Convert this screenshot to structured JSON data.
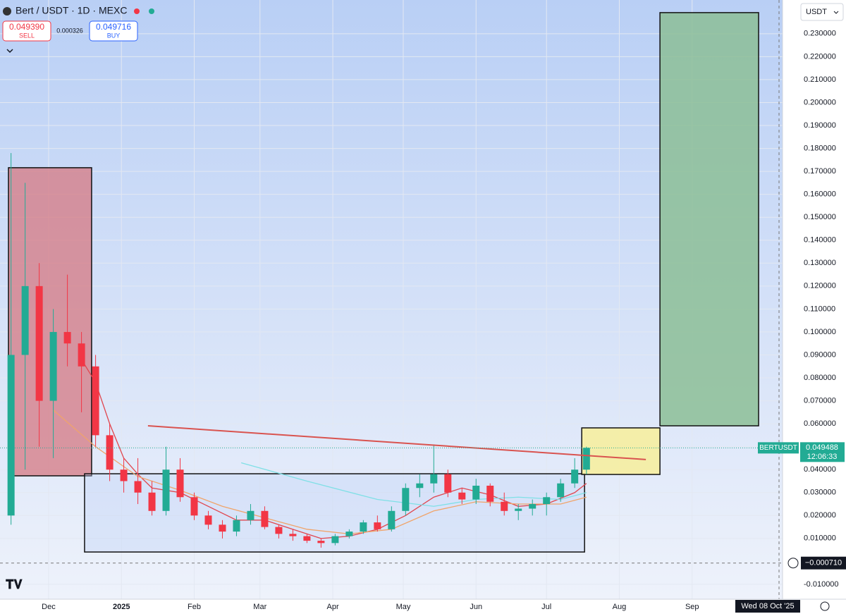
{
  "header": {
    "symbol": "Bert / USDT · 1D · MEXC",
    "sell_price": "0.049390",
    "sell_label": "SELL",
    "spread": "0.000326",
    "buy_price": "0.049716",
    "buy_label": "BUY",
    "currency": "USDT"
  },
  "chart_data": {
    "type": "candlestick",
    "xlim": [
      -20.7,
      312.5
    ],
    "ylim": [
      -0.0134,
      0.2447
    ],
    "grid": true,
    "up_color": "#22ab94",
    "down_color": "#f23645",
    "xticks": [
      {
        "value": 0,
        "label": "Dec"
      },
      {
        "value": 31,
        "label": "2025"
      },
      {
        "value": 62,
        "label": "Feb"
      },
      {
        "value": 90,
        "label": "Mar"
      },
      {
        "value": 121,
        "label": "Apr"
      },
      {
        "value": 151,
        "label": "May"
      },
      {
        "value": 182,
        "label": "Jun"
      },
      {
        "value": 212,
        "label": "Jul"
      },
      {
        "value": 243,
        "label": "Aug"
      },
      {
        "value": 274,
        "label": "Sep"
      }
    ],
    "yticks": [
      {
        "value": -0.01,
        "label": "-0.010000"
      },
      {
        "value": 0.01,
        "label": "0.010000"
      },
      {
        "value": 0.02,
        "label": "0.020000"
      },
      {
        "value": 0.03,
        "label": "0.030000"
      },
      {
        "value": 0.04,
        "label": "0.040000"
      },
      {
        "value": 0.05,
        "label": "0.050000"
      },
      {
        "value": 0.06,
        "label": "0.060000"
      },
      {
        "value": 0.07,
        "label": "0.070000"
      },
      {
        "value": 0.08,
        "label": "0.080000"
      },
      {
        "value": 0.09,
        "label": "0.090000"
      },
      {
        "value": 0.1,
        "label": "0.100000"
      },
      {
        "value": 0.11,
        "label": "0.110000"
      },
      {
        "value": 0.12,
        "label": "0.120000"
      },
      {
        "value": 0.13,
        "label": "0.130000"
      },
      {
        "value": 0.14,
        "label": "0.140000"
      },
      {
        "value": 0.15,
        "label": "0.150000"
      },
      {
        "value": 0.16,
        "label": "0.160000"
      },
      {
        "value": 0.17,
        "label": "0.170000"
      },
      {
        "value": 0.18,
        "label": "0.180000"
      },
      {
        "value": 0.19,
        "label": "0.190000"
      },
      {
        "value": 0.2,
        "label": "0.200000"
      },
      {
        "value": 0.21,
        "label": "0.210000"
      },
      {
        "value": 0.22,
        "label": "0.220000"
      },
      {
        "value": 0.23,
        "label": "0.230000"
      }
    ],
    "candles": {
      "x": [
        -16,
        -10,
        -4,
        2,
        8,
        14,
        20,
        26,
        32,
        38,
        44,
        50,
        56,
        62,
        68,
        74,
        80,
        86,
        92,
        98,
        104,
        110,
        116,
        122,
        128,
        134,
        140,
        146,
        152,
        158,
        164,
        170,
        176,
        182,
        188,
        194,
        200,
        206,
        212,
        218,
        224,
        229
      ],
      "open": [
        0.02,
        0.09,
        0.12,
        0.07,
        0.1,
        0.095,
        0.085,
        0.055,
        0.04,
        0.035,
        0.03,
        0.022,
        0.04,
        0.028,
        0.02,
        0.016,
        0.013,
        0.018,
        0.022,
        0.015,
        0.012,
        0.011,
        0.009,
        0.008,
        0.011,
        0.013,
        0.017,
        0.014,
        0.022,
        0.032,
        0.034,
        0.038,
        0.03,
        0.027,
        0.033,
        0.026,
        0.022,
        0.023,
        0.025,
        0.028,
        0.034,
        0.04
      ],
      "high": [
        0.178,
        0.165,
        0.13,
        0.11,
        0.125,
        0.1,
        0.09,
        0.06,
        0.045,
        0.045,
        0.035,
        0.05,
        0.045,
        0.03,
        0.022,
        0.018,
        0.02,
        0.025,
        0.024,
        0.016,
        0.014,
        0.012,
        0.01,
        0.012,
        0.014,
        0.018,
        0.02,
        0.024,
        0.034,
        0.038,
        0.051,
        0.04,
        0.032,
        0.036,
        0.034,
        0.03,
        0.025,
        0.027,
        0.03,
        0.036,
        0.045,
        0.05
      ],
      "low": [
        0.016,
        0.04,
        0.05,
        0.045,
        0.085,
        0.065,
        0.05,
        0.035,
        0.03,
        0.025,
        0.02,
        0.02,
        0.026,
        0.018,
        0.014,
        0.01,
        0.011,
        0.016,
        0.014,
        0.01,
        0.009,
        0.008,
        0.006,
        0.007,
        0.01,
        0.012,
        0.013,
        0.013,
        0.02,
        0.028,
        0.03,
        0.028,
        0.025,
        0.025,
        0.024,
        0.02,
        0.018,
        0.02,
        0.02,
        0.026,
        0.032,
        0.038
      ],
      "close": [
        0.09,
        0.12,
        0.07,
        0.1,
        0.095,
        0.085,
        0.055,
        0.04,
        0.035,
        0.03,
        0.022,
        0.04,
        0.028,
        0.02,
        0.016,
        0.013,
        0.018,
        0.022,
        0.015,
        0.012,
        0.011,
        0.009,
        0.008,
        0.011,
        0.013,
        0.017,
        0.014,
        0.022,
        0.032,
        0.034,
        0.038,
        0.03,
        0.027,
        0.033,
        0.026,
        0.022,
        0.023,
        0.025,
        0.028,
        0.034,
        0.04,
        0.0495
      ]
    },
    "lines": [
      {
        "color": "#e0464e",
        "x": [
          14,
          20,
          26,
          32,
          38,
          44,
          56,
          68,
          80,
          92,
          104,
          116,
          128,
          140,
          152,
          164,
          176,
          188,
          200,
          212,
          224,
          229
        ],
        "values": [
          0.088,
          0.078,
          0.06,
          0.045,
          0.038,
          0.032,
          0.03,
          0.024,
          0.018,
          0.018,
          0.014,
          0.01,
          0.011,
          0.014,
          0.02,
          0.028,
          0.032,
          0.029,
          0.024,
          0.025,
          0.03,
          0.034
        ]
      },
      {
        "color": "#f0a46a",
        "x": [
          2,
          20,
          38,
          56,
          74,
          92,
          110,
          128,
          146,
          164,
          182,
          200,
          218,
          229
        ],
        "values": [
          0.066,
          0.05,
          0.037,
          0.031,
          0.024,
          0.019,
          0.014,
          0.012,
          0.014,
          0.022,
          0.026,
          0.025,
          0.025,
          0.028
        ]
      },
      {
        "color": "#7fe0e6",
        "x": [
          82,
          110,
          140,
          164,
          182,
          200,
          218,
          229
        ],
        "values": [
          0.043,
          0.035,
          0.027,
          0.024,
          0.027,
          0.028,
          0.027,
          0.03
        ]
      }
    ],
    "boxes": [
      {
        "x": [
          -17.1,
          18.3
        ],
        "y": [
          0.1716,
          0.0373
        ],
        "color": "rgba(214,120,130,0.75)"
      },
      {
        "x": [
          15.3,
          228.2
        ],
        "y": [
          0.0382,
          0.0041
        ],
        "color": "rgba(190,210,245,0.35)"
      },
      {
        "x": [
          227,
          260.3
        ],
        "y": [
          0.0582,
          0.0379
        ],
        "color": "rgba(246,238,160,0.9)"
      },
      {
        "x": [
          260.3,
          302.3
        ],
        "y": [
          0.2392,
          0.0591
        ],
        "color": "rgba(140,190,150,0.85)"
      }
    ],
    "trendline": {
      "x": [
        42.3,
        254.3
      ],
      "y": [
        0.0591,
        0.0444
      ],
      "color": "#d9534f"
    },
    "last_price": {
      "symbol": "BERTUSDT",
      "value": 0.049488,
      "countdown": "12:06:33",
      "color": "#22ab94"
    },
    "crosshair": {
      "x": {
        "value": 311,
        "label": "Wed 08 Oct '25"
      },
      "y": {
        "value": -0.00071,
        "label": "−0.000710"
      }
    }
  }
}
